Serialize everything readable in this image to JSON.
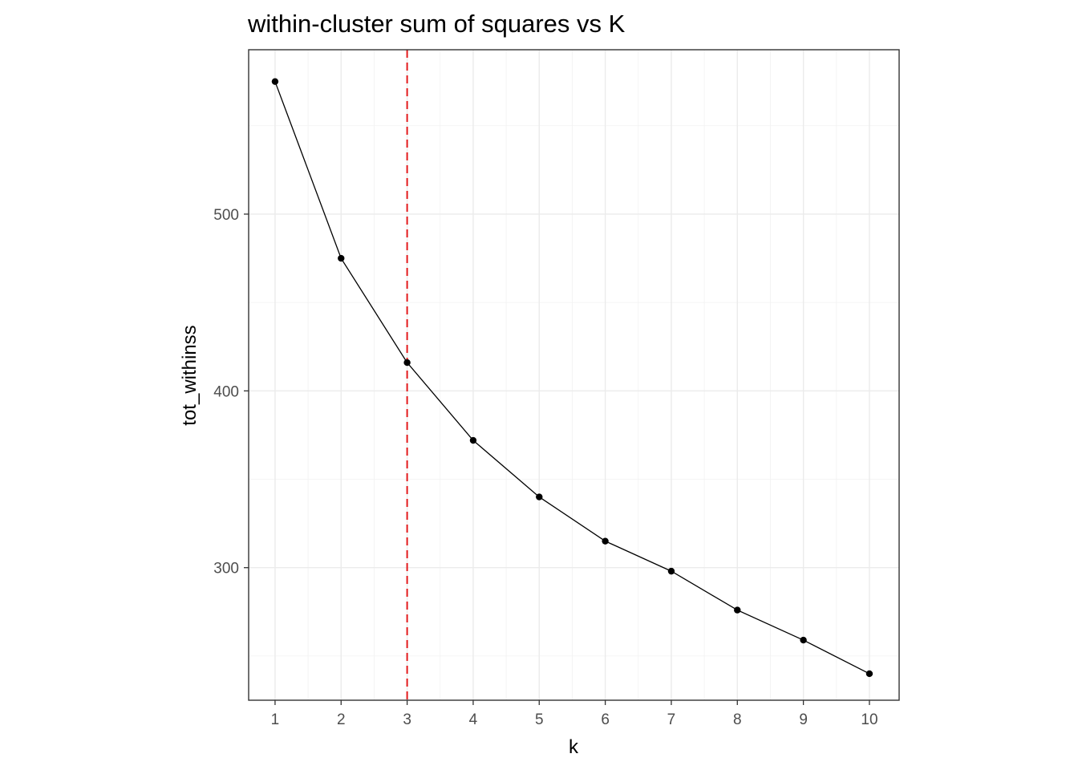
{
  "chart_data": {
    "type": "line",
    "title": "within-cluster sum of squares vs K",
    "xlabel": "k",
    "ylabel": "tot_withinss",
    "x": [
      1,
      2,
      3,
      4,
      5,
      6,
      7,
      8,
      9,
      10
    ],
    "y": [
      575,
      475,
      416,
      372,
      340,
      315,
      298,
      276,
      259,
      240
    ],
    "xticks": [
      "1",
      "2",
      "3",
      "4",
      "5",
      "6",
      "7",
      "8",
      "9",
      "10"
    ],
    "yticks": [
      "300",
      "400",
      "500"
    ],
    "xlim": [
      0.6,
      10.45
    ],
    "ylim": [
      225,
      593
    ],
    "grid": true,
    "line_color": "#000000",
    "point_color": "#000000",
    "vline": {
      "x": 3,
      "color": "#e31a1c",
      "style": "dashed"
    }
  }
}
